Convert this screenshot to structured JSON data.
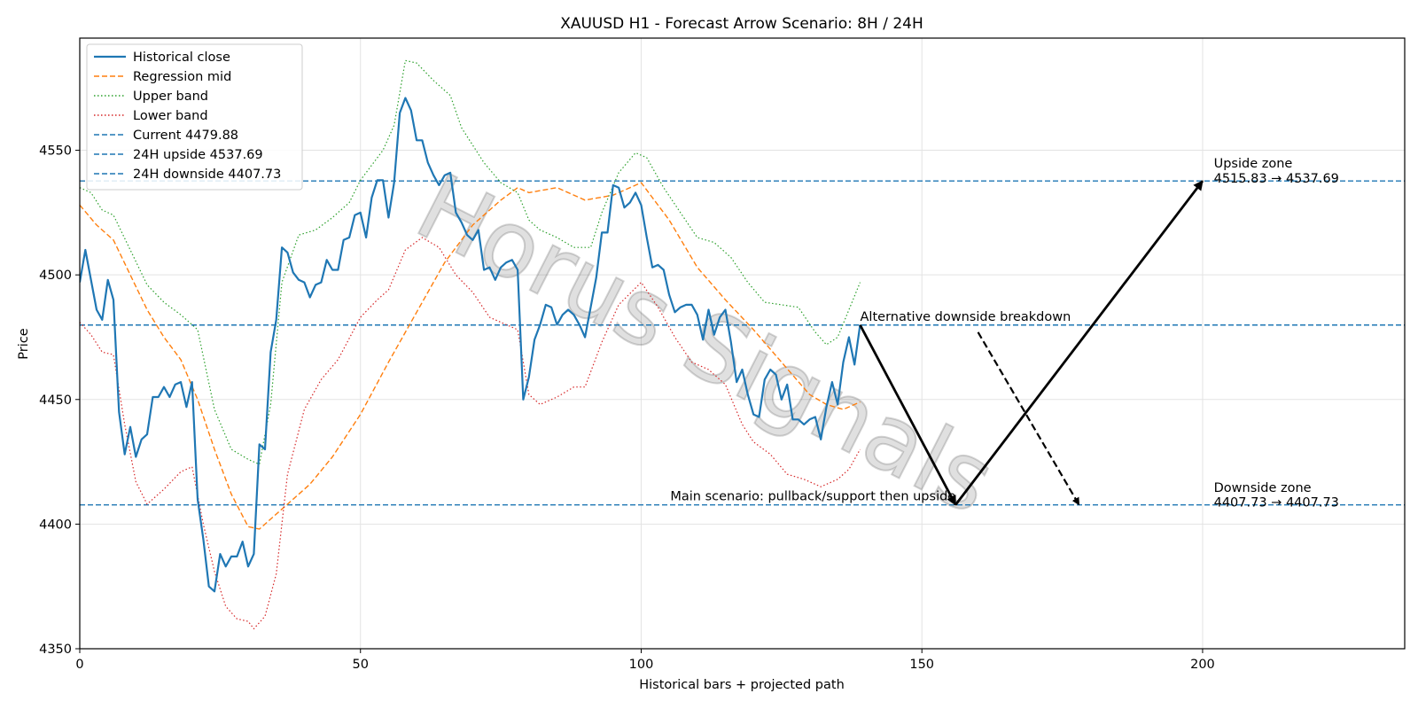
{
  "chart_data": {
    "type": "line",
    "title": "XAUUSD H1 - Forecast Arrow Scenario: 8H / 24H",
    "xlabel": "Historical bars + projected path",
    "ylabel": "Price",
    "xlim": [
      0,
      236
    ],
    "ylim": [
      4350,
      4595
    ],
    "xticks": [
      "0",
      "50",
      "100",
      "150",
      "200"
    ],
    "yticks": [
      "4350",
      "4400",
      "4450",
      "4500",
      "4550"
    ],
    "grid": true,
    "legend_position": "top-left",
    "watermark": "Horus Signals",
    "colors": {
      "historical": "#1f77b4",
      "regression": "#ff7f0e",
      "upper": "#2ca02c",
      "lower": "#d62728",
      "levels": "#1f77b4",
      "arrows": "#000000"
    },
    "series": [
      {
        "name": "Historical close",
        "style": "solid",
        "points": [
          [
            0,
            4497
          ],
          [
            1,
            4510
          ],
          [
            3,
            4486
          ],
          [
            4,
            4482
          ],
          [
            5,
            4498
          ],
          [
            6,
            4490
          ],
          [
            7,
            4445
          ],
          [
            8,
            4428
          ],
          [
            9,
            4439
          ],
          [
            10,
            4427
          ],
          [
            11,
            4434
          ],
          [
            12,
            4436
          ],
          [
            13,
            4451
          ],
          [
            14,
            4451
          ],
          [
            15,
            4455
          ],
          [
            16,
            4451
          ],
          [
            17,
            4456
          ],
          [
            18,
            4457
          ],
          [
            19,
            4447
          ],
          [
            20,
            4457
          ],
          [
            21,
            4410
          ],
          [
            22,
            4394
          ],
          [
            23,
            4375
          ],
          [
            24,
            4373
          ],
          [
            25,
            4388
          ],
          [
            26,
            4383
          ],
          [
            27,
            4387
          ],
          [
            28,
            4387
          ],
          [
            29,
            4393
          ],
          [
            30,
            4383
          ],
          [
            31,
            4388
          ],
          [
            32,
            4432
          ],
          [
            33,
            4430
          ],
          [
            34,
            4469
          ],
          [
            35,
            4482
          ],
          [
            36,
            4511
          ],
          [
            37,
            4509
          ],
          [
            38,
            4501
          ],
          [
            39,
            4498
          ],
          [
            40,
            4497
          ],
          [
            41,
            4491
          ],
          [
            42,
            4496
          ],
          [
            43,
            4497
          ],
          [
            44,
            4506
          ],
          [
            45,
            4502
          ],
          [
            46,
            4502
          ],
          [
            47,
            4514
          ],
          [
            48,
            4515
          ],
          [
            49,
            4524
          ],
          [
            50,
            4525
          ],
          [
            51,
            4515
          ],
          [
            52,
            4531
          ],
          [
            53,
            4538
          ],
          [
            54,
            4538
          ],
          [
            55,
            4523
          ],
          [
            56,
            4537
          ],
          [
            57,
            4565
          ],
          [
            58,
            4571
          ],
          [
            59,
            4566
          ],
          [
            60,
            4554
          ],
          [
            61,
            4554
          ],
          [
            62,
            4545
          ],
          [
            63,
            4540
          ],
          [
            64,
            4536
          ],
          [
            65,
            4540
          ],
          [
            66,
            4541
          ],
          [
            67,
            4525
          ],
          [
            68,
            4521
          ],
          [
            69,
            4516
          ],
          [
            70,
            4514
          ],
          [
            71,
            4518
          ],
          [
            72,
            4502
          ],
          [
            73,
            4503
          ],
          [
            74,
            4498
          ],
          [
            75,
            4503
          ],
          [
            76,
            4505
          ],
          [
            77,
            4506
          ],
          [
            78,
            4502
          ],
          [
            79,
            4450
          ],
          [
            80,
            4459
          ],
          [
            81,
            4474
          ],
          [
            82,
            4480
          ],
          [
            83,
            4488
          ],
          [
            84,
            4487
          ],
          [
            85,
            4480
          ],
          [
            86,
            4484
          ],
          [
            87,
            4486
          ],
          [
            88,
            4484
          ],
          [
            89,
            4480
          ],
          [
            90,
            4475
          ],
          [
            91,
            4487
          ],
          [
            92,
            4499
          ],
          [
            93,
            4517
          ],
          [
            94,
            4517
          ],
          [
            95,
            4536
          ],
          [
            96,
            4535
          ],
          [
            97,
            4527
          ],
          [
            98,
            4529
          ],
          [
            99,
            4533
          ],
          [
            100,
            4528
          ],
          [
            101,
            4515
          ],
          [
            102,
            4503
          ],
          [
            103,
            4504
          ],
          [
            104,
            4502
          ],
          [
            105,
            4492
          ],
          [
            106,
            4485
          ],
          [
            107,
            4487
          ],
          [
            108,
            4488
          ],
          [
            109,
            4488
          ],
          [
            110,
            4484
          ],
          [
            111,
            4474
          ],
          [
            112,
            4486
          ],
          [
            113,
            4476
          ],
          [
            114,
            4483
          ],
          [
            115,
            4486
          ],
          [
            116,
            4473
          ],
          [
            117,
            4457
          ],
          [
            118,
            4462
          ],
          [
            119,
            4452
          ],
          [
            120,
            4444
          ],
          [
            121,
            4443
          ],
          [
            122,
            4458
          ],
          [
            123,
            4462
          ],
          [
            124,
            4460
          ],
          [
            125,
            4450
          ],
          [
            126,
            4456
          ],
          [
            127,
            4442
          ],
          [
            128,
            4442
          ],
          [
            129,
            4440
          ],
          [
            130,
            4442
          ],
          [
            131,
            4443
          ],
          [
            132,
            4434
          ],
          [
            133,
            4447
          ],
          [
            134,
            4457
          ],
          [
            135,
            4448
          ],
          [
            136,
            4465
          ],
          [
            137,
            4475
          ],
          [
            138,
            4464
          ],
          [
            139,
            4480
          ]
        ]
      },
      {
        "name": "Regression mid",
        "style": "dashed",
        "points": [
          [
            0,
            4528
          ],
          [
            3,
            4520
          ],
          [
            6,
            4514
          ],
          [
            9,
            4500
          ],
          [
            12,
            4486
          ],
          [
            15,
            4475
          ],
          [
            18,
            4466
          ],
          [
            21,
            4450
          ],
          [
            24,
            4430
          ],
          [
            27,
            4412
          ],
          [
            30,
            4399
          ],
          [
            32,
            4398
          ],
          [
            35,
            4404
          ],
          [
            38,
            4410
          ],
          [
            41,
            4416
          ],
          [
            45,
            4427
          ],
          [
            50,
            4444
          ],
          [
            55,
            4465
          ],
          [
            60,
            4485
          ],
          [
            65,
            4505
          ],
          [
            70,
            4520
          ],
          [
            75,
            4530
          ],
          [
            78,
            4535
          ],
          [
            80,
            4533
          ],
          [
            85,
            4535
          ],
          [
            90,
            4530
          ],
          [
            95,
            4532
          ],
          [
            100,
            4537
          ],
          [
            105,
            4522
          ],
          [
            110,
            4503
          ],
          [
            115,
            4490
          ],
          [
            120,
            4478
          ],
          [
            125,
            4465
          ],
          [
            130,
            4452
          ],
          [
            133,
            4448
          ],
          [
            136,
            4446
          ],
          [
            139,
            4449
          ]
        ]
      },
      {
        "name": "Upper band",
        "style": "dotted",
        "points": [
          [
            0,
            4535
          ],
          [
            2,
            4533
          ],
          [
            4,
            4526
          ],
          [
            6,
            4524
          ],
          [
            9,
            4510
          ],
          [
            12,
            4496
          ],
          [
            15,
            4489
          ],
          [
            18,
            4484
          ],
          [
            21,
            4478
          ],
          [
            24,
            4446
          ],
          [
            27,
            4430
          ],
          [
            30,
            4426
          ],
          [
            32,
            4424
          ],
          [
            34,
            4448
          ],
          [
            36,
            4497
          ],
          [
            39,
            4516
          ],
          [
            42,
            4518
          ],
          [
            45,
            4523
          ],
          [
            48,
            4529
          ],
          [
            50,
            4538
          ],
          [
            54,
            4550
          ],
          [
            56,
            4560
          ],
          [
            58,
            4586
          ],
          [
            60,
            4585
          ],
          [
            63,
            4578
          ],
          [
            66,
            4572
          ],
          [
            68,
            4559
          ],
          [
            72,
            4545
          ],
          [
            75,
            4537
          ],
          [
            78,
            4533
          ],
          [
            80,
            4522
          ],
          [
            82,
            4518
          ],
          [
            85,
            4515
          ],
          [
            88,
            4511
          ],
          [
            91,
            4511
          ],
          [
            93,
            4525
          ],
          [
            96,
            4541
          ],
          [
            99,
            4549
          ],
          [
            101,
            4547
          ],
          [
            104,
            4535
          ],
          [
            107,
            4525
          ],
          [
            110,
            4515
          ],
          [
            113,
            4513
          ],
          [
            116,
            4507
          ],
          [
            119,
            4497
          ],
          [
            122,
            4489
          ],
          [
            125,
            4488
          ],
          [
            128,
            4487
          ],
          [
            131,
            4477
          ],
          [
            133,
            4472
          ],
          [
            135,
            4475
          ],
          [
            137,
            4486
          ],
          [
            139,
            4497
          ]
        ]
      },
      {
        "name": "Lower band",
        "style": "dotted",
        "points": [
          [
            0,
            4481
          ],
          [
            2,
            4476
          ],
          [
            4,
            4469
          ],
          [
            6,
            4468
          ],
          [
            8,
            4440
          ],
          [
            10,
            4417
          ],
          [
            12,
            4408
          ],
          [
            15,
            4414
          ],
          [
            18,
            4421
          ],
          [
            20,
            4423
          ],
          [
            22,
            4400
          ],
          [
            24,
            4381
          ],
          [
            26,
            4367
          ],
          [
            28,
            4362
          ],
          [
            30,
            4361
          ],
          [
            31,
            4358
          ],
          [
            33,
            4363
          ],
          [
            35,
            4380
          ],
          [
            37,
            4420
          ],
          [
            40,
            4446
          ],
          [
            43,
            4458
          ],
          [
            46,
            4466
          ],
          [
            50,
            4483
          ],
          [
            53,
            4490
          ],
          [
            55,
            4494
          ],
          [
            58,
            4510
          ],
          [
            61,
            4515
          ],
          [
            64,
            4511
          ],
          [
            67,
            4500
          ],
          [
            70,
            4493
          ],
          [
            73,
            4483
          ],
          [
            76,
            4480
          ],
          [
            78,
            4478
          ],
          [
            80,
            4452
          ],
          [
            82,
            4448
          ],
          [
            85,
            4451
          ],
          [
            88,
            4455
          ],
          [
            90,
            4455
          ],
          [
            93,
            4473
          ],
          [
            96,
            4488
          ],
          [
            100,
            4497
          ],
          [
            103,
            4487
          ],
          [
            106,
            4475
          ],
          [
            109,
            4465
          ],
          [
            112,
            4462
          ],
          [
            115,
            4456
          ],
          [
            118,
            4440
          ],
          [
            120,
            4433
          ],
          [
            123,
            4428
          ],
          [
            126,
            4420
          ],
          [
            129,
            4418
          ],
          [
            132,
            4415
          ],
          [
            135,
            4418
          ],
          [
            137,
            4422
          ],
          [
            139,
            4430
          ]
        ]
      }
    ],
    "levels": [
      {
        "name": "Current 4479.88",
        "value": 4479.88
      },
      {
        "name": "24H upside 4537.69",
        "value": 4537.69
      },
      {
        "name": "24H downside 4407.73",
        "value": 4407.73
      }
    ],
    "arrows": [
      {
        "id": "main-down",
        "from": [
          139,
          4479.88
        ],
        "to": [
          156,
          4407.73
        ],
        "style": "solid"
      },
      {
        "id": "main-up",
        "from": [
          156,
          4407.73
        ],
        "to": [
          200,
          4537.69
        ],
        "style": "solid"
      },
      {
        "id": "alt-down",
        "from": [
          160,
          4477
        ],
        "to": [
          178,
          4407.73
        ],
        "style": "dashed"
      }
    ],
    "annotations": [
      {
        "id": "main-scenario",
        "text": "Main scenario: pullback/support then upside",
        "x": 156,
        "y": 4409.5,
        "anchor": "end"
      },
      {
        "id": "alt-breakdown",
        "text": "Alternative downside breakdown",
        "x": 139,
        "y": 4481.5,
        "anchor": "start"
      },
      {
        "id": "upside-zone-label",
        "text": "Upside zone",
        "x": 202,
        "y": 4543,
        "anchor": "start"
      },
      {
        "id": "upside-zone-range",
        "text": "4515.83 → 4537.69",
        "x": 202,
        "y": 4537,
        "anchor": "start"
      },
      {
        "id": "downside-zone-label",
        "text": "Downside zone",
        "x": 202,
        "y": 4413,
        "anchor": "start"
      },
      {
        "id": "downside-zone-range",
        "text": "4407.73 → 4407.73",
        "x": 202,
        "y": 4407,
        "anchor": "start"
      }
    ]
  }
}
